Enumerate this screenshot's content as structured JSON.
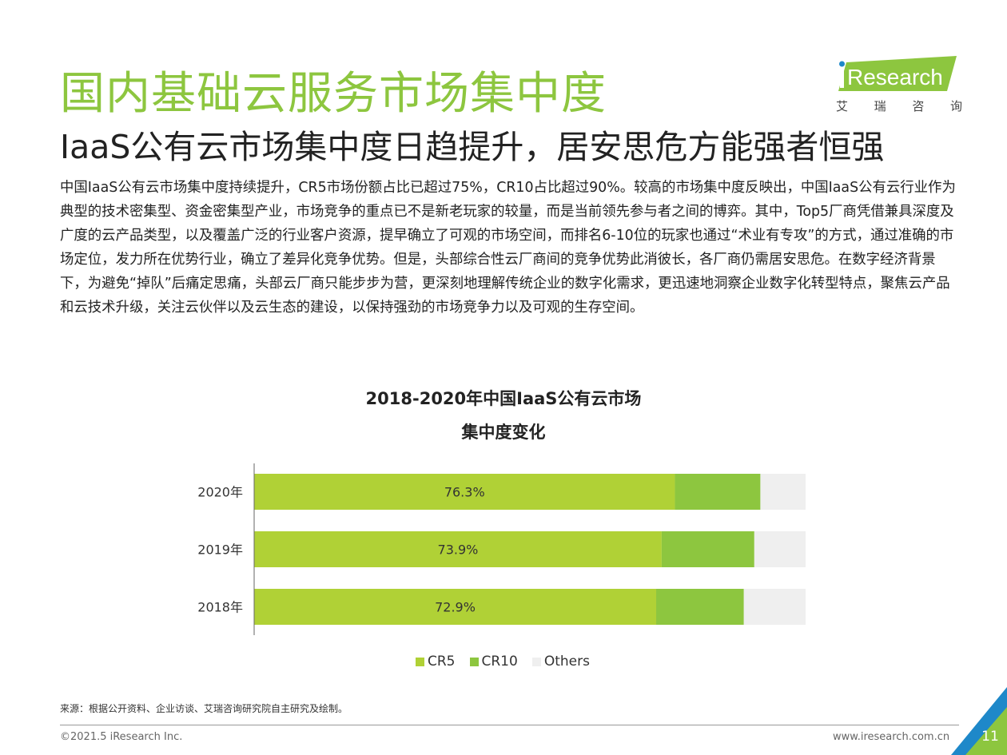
{
  "header": {
    "title": "国内基础云服务市场集中度",
    "subtitle": "IaaS公有云市场集中度日趋提升，居安思危方能强者恒强"
  },
  "logo": {
    "word": "Research",
    "cn_chars": [
      "艾",
      "瑞",
      "咨",
      "询"
    ],
    "colors": {
      "green": "#8dc63f",
      "blue": "#1e88c9"
    }
  },
  "body": {
    "paragraph": "中国IaaS公有云市场集中度持续提升，CR5市场份额占比已超过75%，CR10占比超过90%。较高的市场集中度反映出，中国IaaS公有云行业作为典型的技术密集型、资金密集型产业，市场竞争的重点已不是新老玩家的较量，而是当前领先参与者之间的博弈。其中，Top5厂商凭借兼具深度及广度的云产品类型，以及覆盖广泛的行业客户资源，提早确立了可观的市场空间，而排名6-10位的玩家也通过“术业有专攻”的方式，通过准确的市场定位，发力所在优势行业，确立了差异化竞争优势。但是，头部综合性云厂商间的竞争优势此消彼长，各厂商仍需居安思危。在数字经济背景下，为避免“掉队”后痛定思痛，头部云厂商只能步步为营，更深刻地理解传统企业的数字化需求，更迅速地洞察企业数字化转型特点，聚焦云产品和云技术升级，关注云伙伴以及云生态的建设，以保持强劲的市场竞争力以及可观的生存空间。"
  },
  "chart_data": {
    "type": "bar",
    "orientation": "horizontal",
    "stacked": true,
    "title_lines": [
      "2018-2020年中国IaaS公有云市场",
      "集中度变化"
    ],
    "categories": [
      "2020年",
      "2019年",
      "2018年"
    ],
    "series": [
      {
        "name": "CR5",
        "values": [
          76.3,
          73.9,
          72.9
        ],
        "color": "#b0d136",
        "labels": [
          "76.3%",
          "73.9%",
          "72.9%"
        ]
      },
      {
        "name": "CR10",
        "values": [
          15.5,
          16.8,
          15.9
        ],
        "color": "#8dc63f"
      },
      {
        "name": "Others",
        "values": [
          8.2,
          9.3,
          11.2
        ],
        "color": "#efefef"
      }
    ],
    "xlim": [
      0,
      100
    ],
    "grid": false,
    "legend_position": "bottom"
  },
  "footer": {
    "source": "来源：根据公开资料、企业访谈、艾瑞咨询研究院自主研究及绘制。",
    "copyright": "©2021.5 iResearch Inc.",
    "site": "www.iresearch.com.cn",
    "page": "11"
  }
}
